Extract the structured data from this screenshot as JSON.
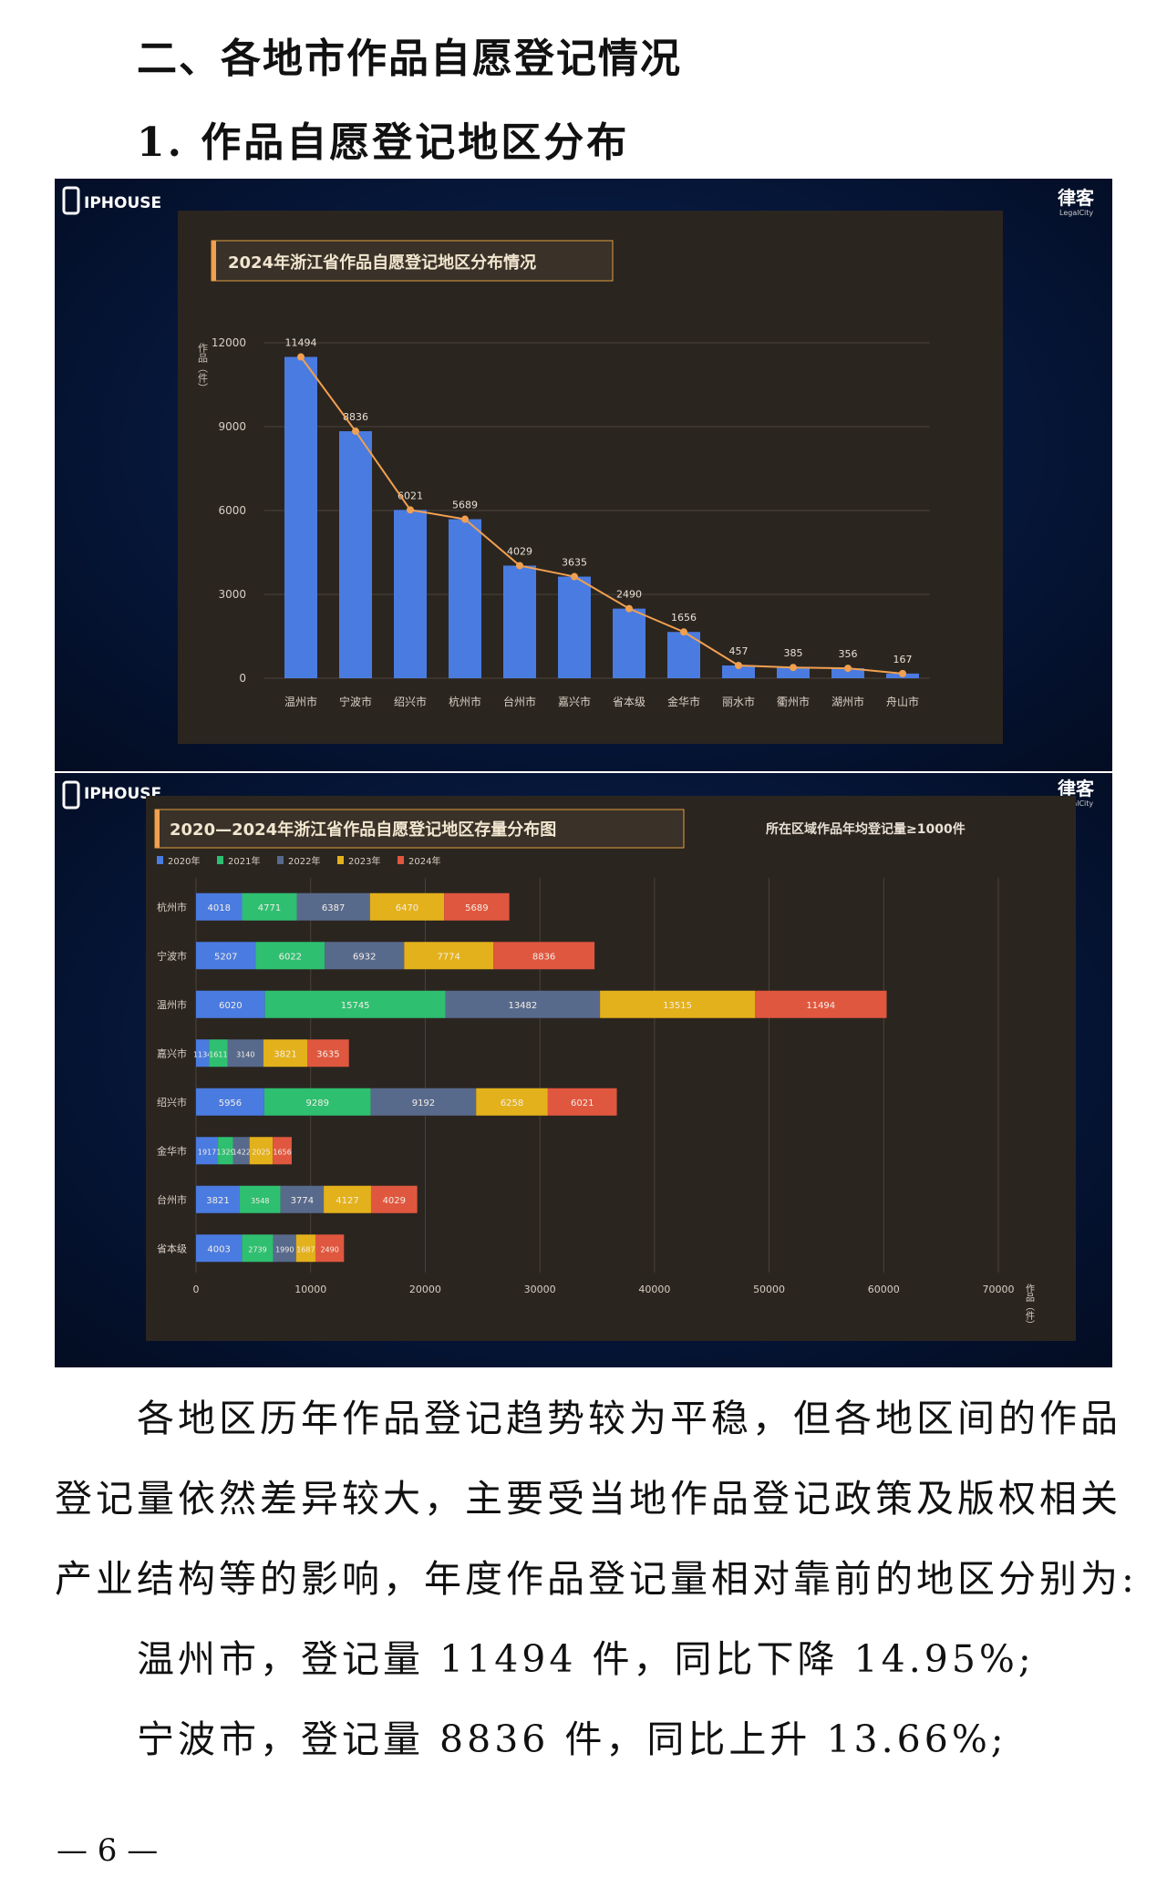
{
  "heading_section": "二、各地市作品自愿登记情况",
  "heading_sub": "1. 作品自愿登记地区分布",
  "logos": {
    "left": "IPHOUSE",
    "right_main": "律客",
    "right_sub": "LegalCity"
  },
  "chart_data": [
    {
      "type": "bar",
      "title": "2024年浙江省作品自愿登记地区分布情况",
      "ylabel": "作品（件）",
      "ylim": [
        0,
        12000
      ],
      "yticks": [
        "0",
        "3000",
        "6000",
        "9000",
        "12000"
      ],
      "categories": [
        "温州市",
        "宁波市",
        "绍兴市",
        "杭州市",
        "台州市",
        "嘉兴市",
        "省本级",
        "金华市",
        "丽水市",
        "衢州市",
        "湖州市",
        "舟山市"
      ],
      "values": [
        11494,
        8836,
        6021,
        5689,
        4029,
        3635,
        2490,
        1656,
        457,
        385,
        356,
        167
      ],
      "labels": [
        "11494",
        "8836",
        "6021",
        "5689",
        "4029",
        "3635",
        "2490",
        "1656",
        "457",
        "385",
        "356",
        "167"
      ],
      "overlay_line": true,
      "colors": {
        "bar": "#4a7be0",
        "line": "#f0a050"
      }
    },
    {
      "type": "bar",
      "orientation": "horizontal",
      "stacked": true,
      "title": "2020—2024年浙江省作品自愿登记地区存量分布图",
      "note": "所在区域作品年均登记量≥1000件",
      "xlabel": "作品（件）",
      "xlim": [
        0,
        70000
      ],
      "xticks": [
        "0",
        "10000",
        "20000",
        "30000",
        "40000",
        "50000",
        "60000",
        "70000"
      ],
      "categories": [
        "杭州市",
        "宁波市",
        "温州市",
        "嘉兴市",
        "绍兴市",
        "金华市",
        "台州市",
        "省本级"
      ],
      "series": [
        {
          "name": "2020年",
          "color": "#4a7be0",
          "values": [
            4018,
            5207,
            6020,
            1134,
            5956,
            1917,
            3821,
            4003
          ],
          "labels": [
            "4018",
            "5207",
            "6020",
            "1134",
            "5956",
            "1917",
            "3821",
            "4003"
          ]
        },
        {
          "name": "2021年",
          "color": "#2fbf71",
          "values": [
            4771,
            6022,
            15745,
            1611,
            9289,
            1329,
            3548,
            2739
          ],
          "labels": [
            "4771",
            "6022",
            "15745",
            "1611",
            "9289",
            "1329",
            "3548",
            "2739"
          ]
        },
        {
          "name": "2022年",
          "color": "#586a8c",
          "values": [
            6387,
            6932,
            13482,
            3140,
            9192,
            1422,
            3774,
            1990
          ],
          "labels": [
            "6387",
            "6932",
            "13482",
            "3140",
            "9192",
            "1422",
            "3774",
            "1990"
          ]
        },
        {
          "name": "2023年",
          "color": "#e3b11c",
          "values": [
            6470,
            7774,
            13515,
            3821,
            6258,
            2025,
            4127,
            1687
          ],
          "labels": [
            "6470",
            "7774",
            "13515",
            "3821",
            "6258",
            "2025",
            "4127",
            "1687"
          ]
        },
        {
          "name": "2024年",
          "color": "#e0573f",
          "values": [
            5689,
            8836,
            11494,
            3635,
            6021,
            1656,
            4029,
            2490
          ],
          "labels": [
            "5689",
            "8836",
            "11494",
            "3635",
            "6021",
            "1656",
            "4029",
            "2490"
          ]
        }
      ]
    }
  ],
  "paragraph": {
    "line1": "各地区历年作品登记趋势较为平稳，但各地区间的作品",
    "line2": "登记量依然差异较大，主要受当地作品登记政策及版权相关",
    "line3": "产业结构等的影响，年度作品登记量相对靠前的地区分别为:",
    "line4": "温州市，登记量 11494 件，同比下降 14.95%;",
    "line5": "宁波市，登记量 8836 件，同比上升 13.66%;"
  },
  "page_number": "— 6 —"
}
